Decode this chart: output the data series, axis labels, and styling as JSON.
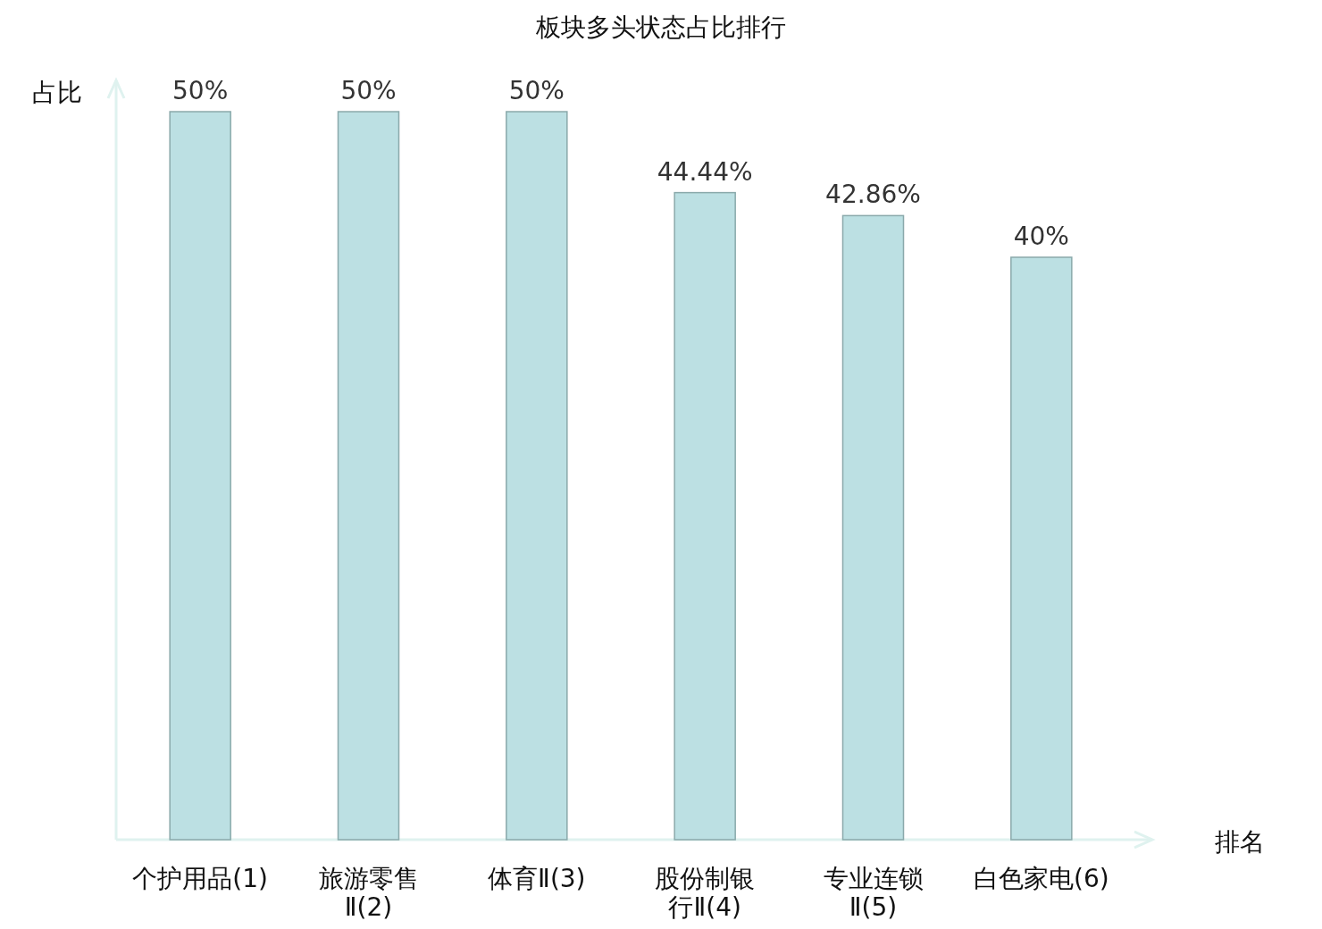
{
  "chart_data": {
    "type": "bar",
    "title": "板块多头状态占比排行",
    "xlabel": "排名",
    "ylabel": "占比",
    "categories": [
      "个护用品(1)",
      "旅游零售Ⅱ(2)",
      "体育Ⅱ(3)",
      "股份制银行Ⅱ(4)",
      "专业连锁Ⅱ(5)",
      "白色家电(6)"
    ],
    "values": [
      50,
      50,
      50,
      44.44,
      42.86,
      40
    ],
    "value_labels": [
      "50%",
      "50%",
      "50%",
      "44.44%",
      "42.86%",
      "40%"
    ],
    "color": "#bce0e3"
  }
}
